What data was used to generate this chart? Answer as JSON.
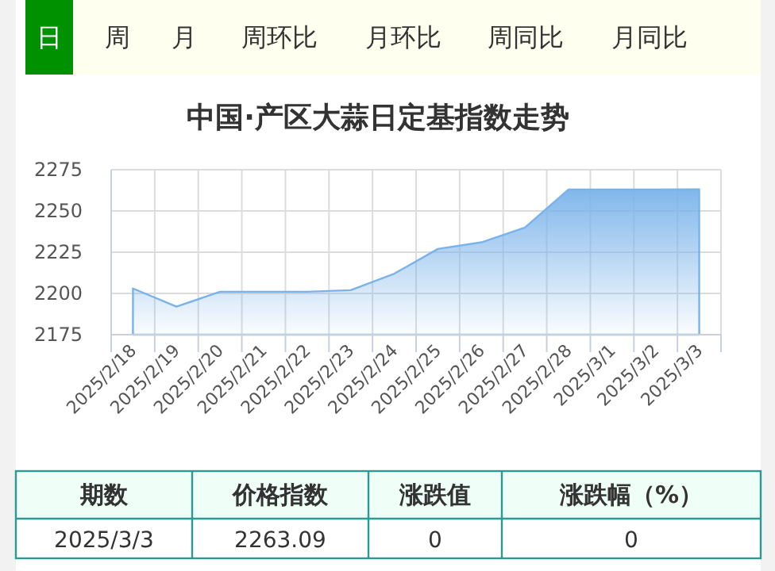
{
  "chart_data": {
    "type": "area",
    "title": "中国·产区大蒜日定基指数走势",
    "categories": [
      "2025/2/18",
      "2025/2/19",
      "2025/2/20",
      "2025/2/21",
      "2025/2/22",
      "2025/2/23",
      "2025/2/24",
      "2025/2/25",
      "2025/2/26",
      "2025/2/27",
      "2025/2/28",
      "2025/3/1",
      "2025/3/2",
      "2025/3/3"
    ],
    "series": [
      {
        "color": "#7ab3ea",
        "values": [
          2203,
          2192,
          2201,
          2201,
          2201,
          2202,
          2212,
          2227,
          2231,
          2240,
          2263,
          2263,
          2263,
          2263.09
        ]
      }
    ],
    "ylim": [
      2175,
      2275
    ],
    "yticks": [
      2175,
      2200,
      2225,
      2250,
      2275
    ],
    "grid": true,
    "marker": "none",
    "annotations": [
      "日",
      "周",
      "月",
      "周环比",
      "月环比",
      "周同比",
      "月同比",
      "期数",
      "价格指数",
      "涨跌值",
      "涨跌幅（%）",
      "2025/3/3",
      "2263.09",
      "0",
      "0"
    ]
  }
}
